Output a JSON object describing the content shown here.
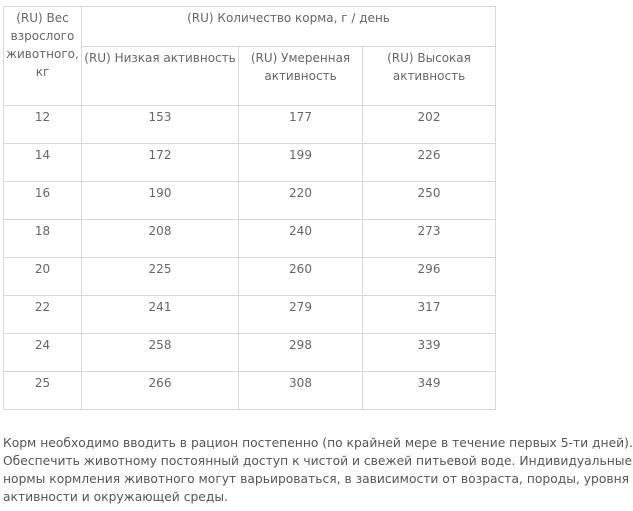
{
  "table": {
    "header": {
      "weight": "(RU) Вес взрослого животного, кг",
      "amount": "(RU) Количество корма, г / день",
      "low": "(RU) Низкая активность",
      "moderate": "(RU) Умеренная активность",
      "high": "(RU) Высокая активность"
    },
    "rows": [
      [
        12,
        153,
        177,
        202
      ],
      [
        14,
        172,
        199,
        226
      ],
      [
        16,
        190,
        220,
        250
      ],
      [
        18,
        208,
        240,
        273
      ],
      [
        20,
        225,
        260,
        296
      ],
      [
        22,
        241,
        279,
        317
      ],
      [
        24,
        258,
        298,
        339
      ],
      [
        25,
        266,
        308,
        349
      ]
    ]
  },
  "note": {
    "lines": [
      "Корм необходимо вводить в рацион постепенно (по крайней мере в течение первых 5-ти дней).",
      "Обеспечить животному постоянный доступ к чистой и свежей питьевой воде. Индивидуальные",
      "нормы кормления животного могут варьироваться, в зависимости от возраста, породы, уровня",
      "активности и окружающей среды."
    ]
  }
}
